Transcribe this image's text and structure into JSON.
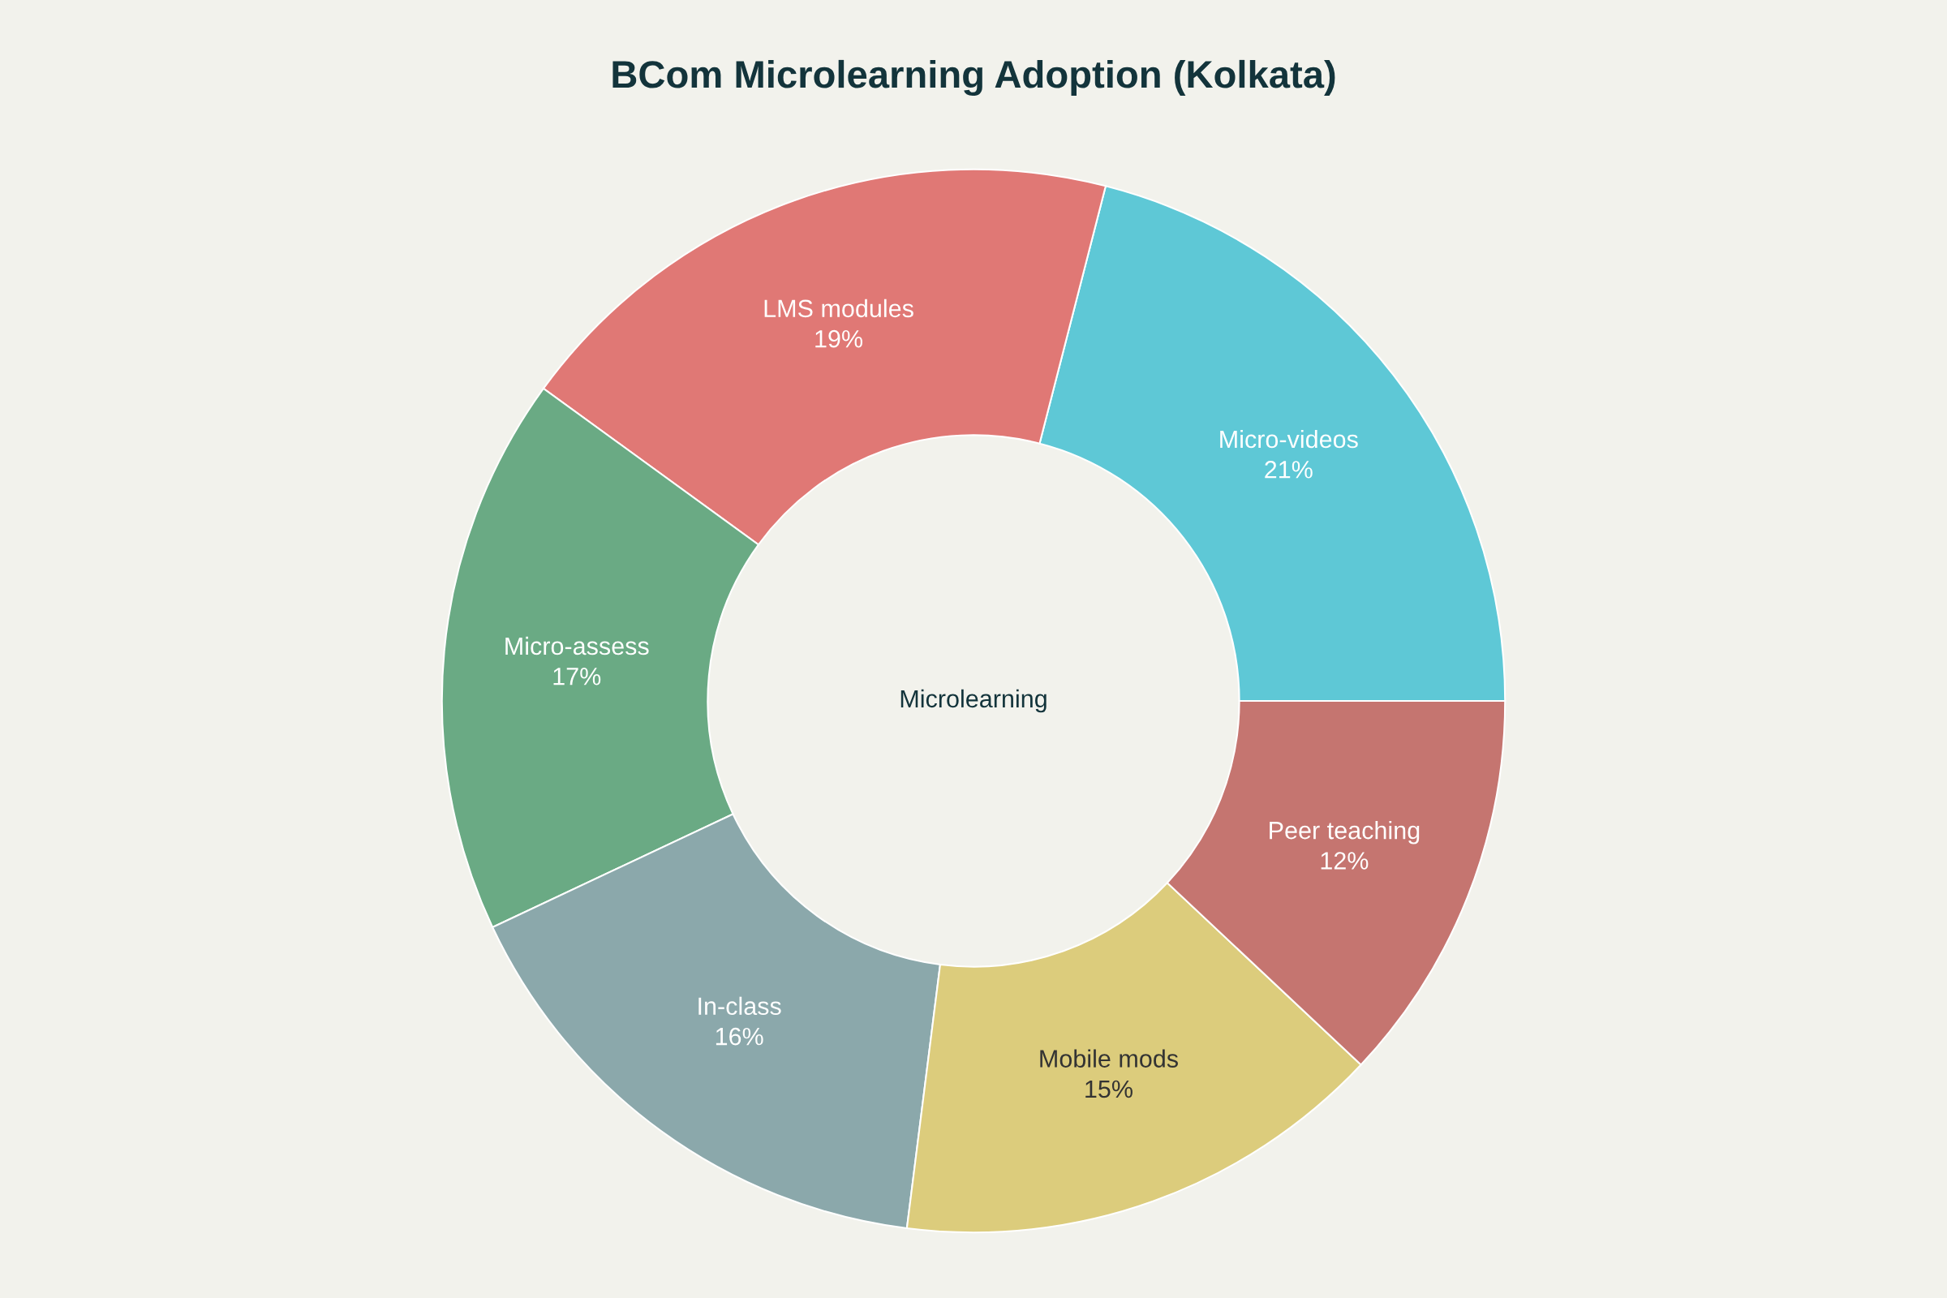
{
  "chart_data": {
    "type": "donut",
    "title": "BCom Microlearning Adoption (Kolkata)",
    "categories": [
      "Micro-videos",
      "LMS modules",
      "Micro-assess",
      "In-class",
      "Mobile mods",
      "Peer teaching"
    ],
    "values": [
      21,
      19,
      17,
      16,
      15,
      12
    ],
    "value_labels": [
      "21%",
      "19%",
      "17%",
      "16%",
      "15%",
      "12%"
    ],
    "colors": [
      "#5ec8d6",
      "#e07875",
      "#6aaa84",
      "#8ba8ab",
      "#dccc7c",
      "#c57570"
    ],
    "annotations": [
      "Microlearning"
    ],
    "legend": false
  }
}
